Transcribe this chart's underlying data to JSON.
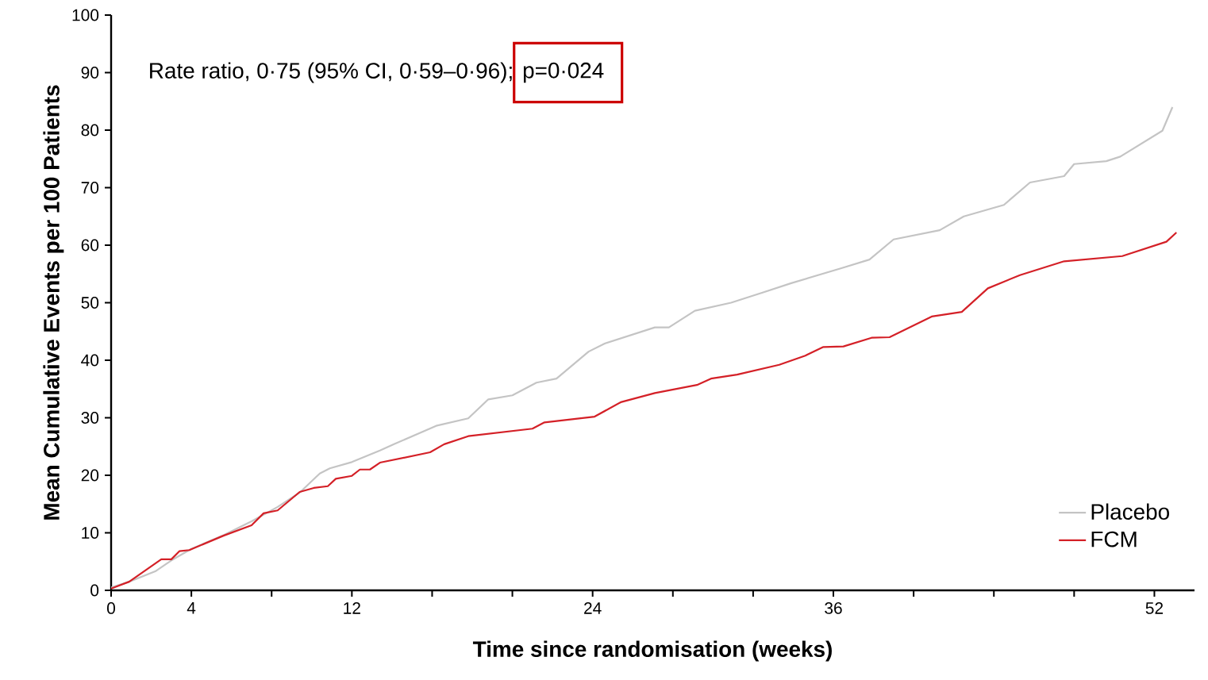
{
  "chart_data": {
    "type": "line",
    "xlabel": "Time since randomisation (weeks)",
    "ylabel": "Mean Cumulative Events per 100 Patients",
    "annotations": [
      "Rate ratio, 0·75 (95% CI, 0·59–0·96);",
      "p=0·024"
    ],
    "xlim": [
      0,
      54
    ],
    "ylim": [
      0,
      100
    ],
    "xticks": [
      0,
      4,
      {
        "value": 8,
        "label": null
      },
      12,
      {
        "value": 16,
        "label": null
      },
      {
        "value": 20,
        "label": null
      },
      24,
      {
        "value": 28,
        "label": null
      },
      {
        "value": 32,
        "label": null
      },
      36,
      {
        "value": 40,
        "label": null
      },
      {
        "value": 44,
        "label": null
      },
      {
        "value": 48,
        "label": null
      },
      52
    ],
    "yticks": [
      0,
      10,
      20,
      30,
      40,
      50,
      60,
      70,
      80,
      90,
      100
    ],
    "legend": "bottom right",
    "series": [
      {
        "name": "Placebo",
        "color": "#c4c4c4",
        "x": [
          0,
          0.9,
          2.2,
          3.0,
          4.0,
          5.6,
          7.0,
          8.3,
          9.4,
          10.4,
          10.9,
          12.0,
          13.4,
          14.1,
          16.2,
          17.8,
          18.8,
          20.0,
          21.2,
          22.2,
          23.8,
          24.6,
          27.1,
          27.8,
          29.1,
          30.9,
          32.5,
          33.9,
          36.4,
          37.8,
          39.0,
          41.3,
          42.5,
          44.5,
          45.8,
          47.5,
          48.0,
          49.6,
          50.3,
          52.4,
          52.9
        ],
        "values": [
          0.5,
          1.5,
          3.3,
          5.2,
          7.2,
          9.6,
          12.0,
          14.5,
          17.0,
          20.3,
          21.2,
          22.3,
          24.3,
          25.4,
          28.6,
          29.9,
          33.2,
          33.9,
          36.1,
          36.8,
          41.5,
          42.9,
          45.7,
          45.7,
          48.6,
          50.0,
          51.8,
          53.4,
          56.0,
          57.5,
          61.0,
          62.6,
          65.0,
          67.0,
          70.9,
          72.0,
          74.1,
          74.6,
          75.4,
          79.9,
          84.0
        ]
      },
      {
        "name": "FCM",
        "color": "#d42027",
        "x": [
          0,
          0.9,
          2.5,
          3.0,
          3.4,
          3.9,
          5.6,
          7.0,
          7.6,
          8.3,
          9.4,
          10.1,
          10.8,
          11.2,
          12.0,
          12.4,
          12.9,
          13.4,
          15.9,
          16.6,
          17.8,
          21.0,
          21.6,
          24.1,
          25.4,
          27.1,
          29.2,
          29.9,
          31.2,
          33.3,
          34.6,
          35.5,
          36.5,
          37.9,
          38.8,
          40.9,
          42.4,
          43.7,
          45.3,
          47.5,
          50.4,
          52.6,
          53.1
        ],
        "values": [
          0.3,
          1.5,
          5.4,
          5.4,
          6.8,
          7.0,
          9.5,
          11.3,
          13.4,
          13.9,
          17.1,
          17.8,
          18.1,
          19.4,
          19.9,
          21.0,
          21.0,
          22.2,
          24.0,
          25.4,
          26.8,
          28.1,
          29.2,
          30.2,
          32.7,
          34.3,
          35.7,
          36.8,
          37.5,
          39.2,
          40.8,
          42.3,
          42.4,
          43.9,
          44.0,
          47.6,
          48.4,
          52.5,
          54.8,
          57.2,
          58.1,
          60.6,
          62.2
        ]
      }
    ]
  }
}
